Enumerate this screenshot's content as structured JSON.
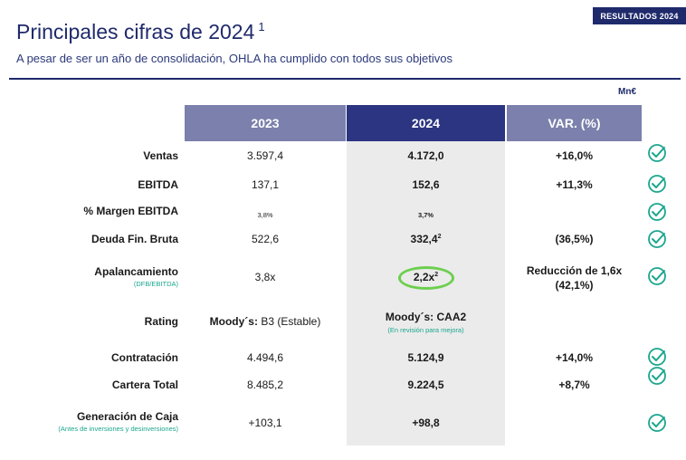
{
  "header": {
    "badge": "RESULTADOS 2024",
    "title": "Principales cifras de 2024",
    "title_sup": "1",
    "subtitle": "A pesar de ser un año de consolidación, OHLA ha cumplido con todos sus objetivos",
    "unit": "Mn€"
  },
  "columns": {
    "c2023": "2023",
    "c2024": "2024",
    "var": "VAR. (%)"
  },
  "rows": [
    {
      "label": "Ventas",
      "v2023": "3.597,4",
      "v2024": "4.172,0",
      "var": "+16,0%",
      "check": true
    },
    {
      "label": "EBITDA",
      "v2023": "137,1",
      "v2024": "152,6",
      "var": "+11,3%",
      "check": true
    },
    {
      "label": "% Margen EBITDA",
      "v2023": "3,8%",
      "v2024": "3,7%",
      "var": "",
      "check": true
    },
    {
      "label": "Deuda Fin. Bruta",
      "v2023": "522,6",
      "v2024": "332,4",
      "v2024_sup": "2",
      "var": "(36,5%)",
      "check": true
    },
    {
      "label": "Apalancamiento",
      "note": "(DFB/EBITDA)",
      "v2023": "3,8x",
      "v2024": "2,2x",
      "v2024_sup": "2",
      "var_line1": "Reducción de 1,6x",
      "var_line2": "(42,1%)",
      "check": true
    },
    {
      "label": "Rating",
      "v2023_prefix": "Moody´s:",
      "v2023": "B3 (Estable)",
      "v2024": "Moody´s: CAA2",
      "v2024_note": "(En revisión para mejora)",
      "var": "",
      "check": false
    },
    {
      "label": "Contratación",
      "v2023": "4.494,6",
      "v2024": "5.124,9",
      "var": "+14,0%",
      "check": true
    },
    {
      "label": "Cartera Total",
      "v2023": "8.485,2",
      "v2024": "9.224,5",
      "var": "+8,7%",
      "check": true
    },
    {
      "label": "Generación de Caja",
      "note": "(Antes de inversiones y desinversiones)",
      "v2023": "+103,1",
      "v2024": "+98,8",
      "var": "",
      "check": true
    }
  ],
  "colors": {
    "navy": "#1f2a6b",
    "header_light": "#7b80ac",
    "header_dark": "#2b3581",
    "check": "#1aa68e",
    "highlight_ring": "#6ccf4f"
  },
  "icons": {
    "check": "check-circle-icon"
  }
}
